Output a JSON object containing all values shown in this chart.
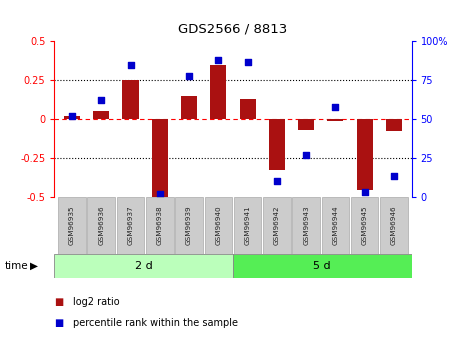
{
  "title": "GDS2566 / 8813",
  "samples": [
    "GSM96935",
    "GSM96936",
    "GSM96937",
    "GSM96938",
    "GSM96939",
    "GSM96940",
    "GSM96941",
    "GSM96942",
    "GSM96943",
    "GSM96944",
    "GSM96945",
    "GSM96946"
  ],
  "log2_ratio": [
    0.02,
    0.05,
    0.25,
    -0.5,
    0.15,
    0.35,
    0.13,
    -0.33,
    -0.07,
    -0.01,
    -0.46,
    -0.08
  ],
  "percentile_rank": [
    52,
    62,
    85,
    2,
    78,
    88,
    87,
    10,
    27,
    58,
    3,
    13
  ],
  "bar_color": "#aa1111",
  "dot_color": "#0000cc",
  "group1_label": "2 d",
  "group2_label": "5 d",
  "group1_count": 6,
  "group2_count": 6,
  "group1_color": "#bbffbb",
  "group2_color": "#55ee55",
  "ylim_left": [
    -0.5,
    0.5
  ],
  "yticks_left": [
    -0.5,
    -0.25,
    0,
    0.25,
    0.5
  ],
  "yticks_right": [
    0,
    25,
    50,
    75,
    100
  ]
}
